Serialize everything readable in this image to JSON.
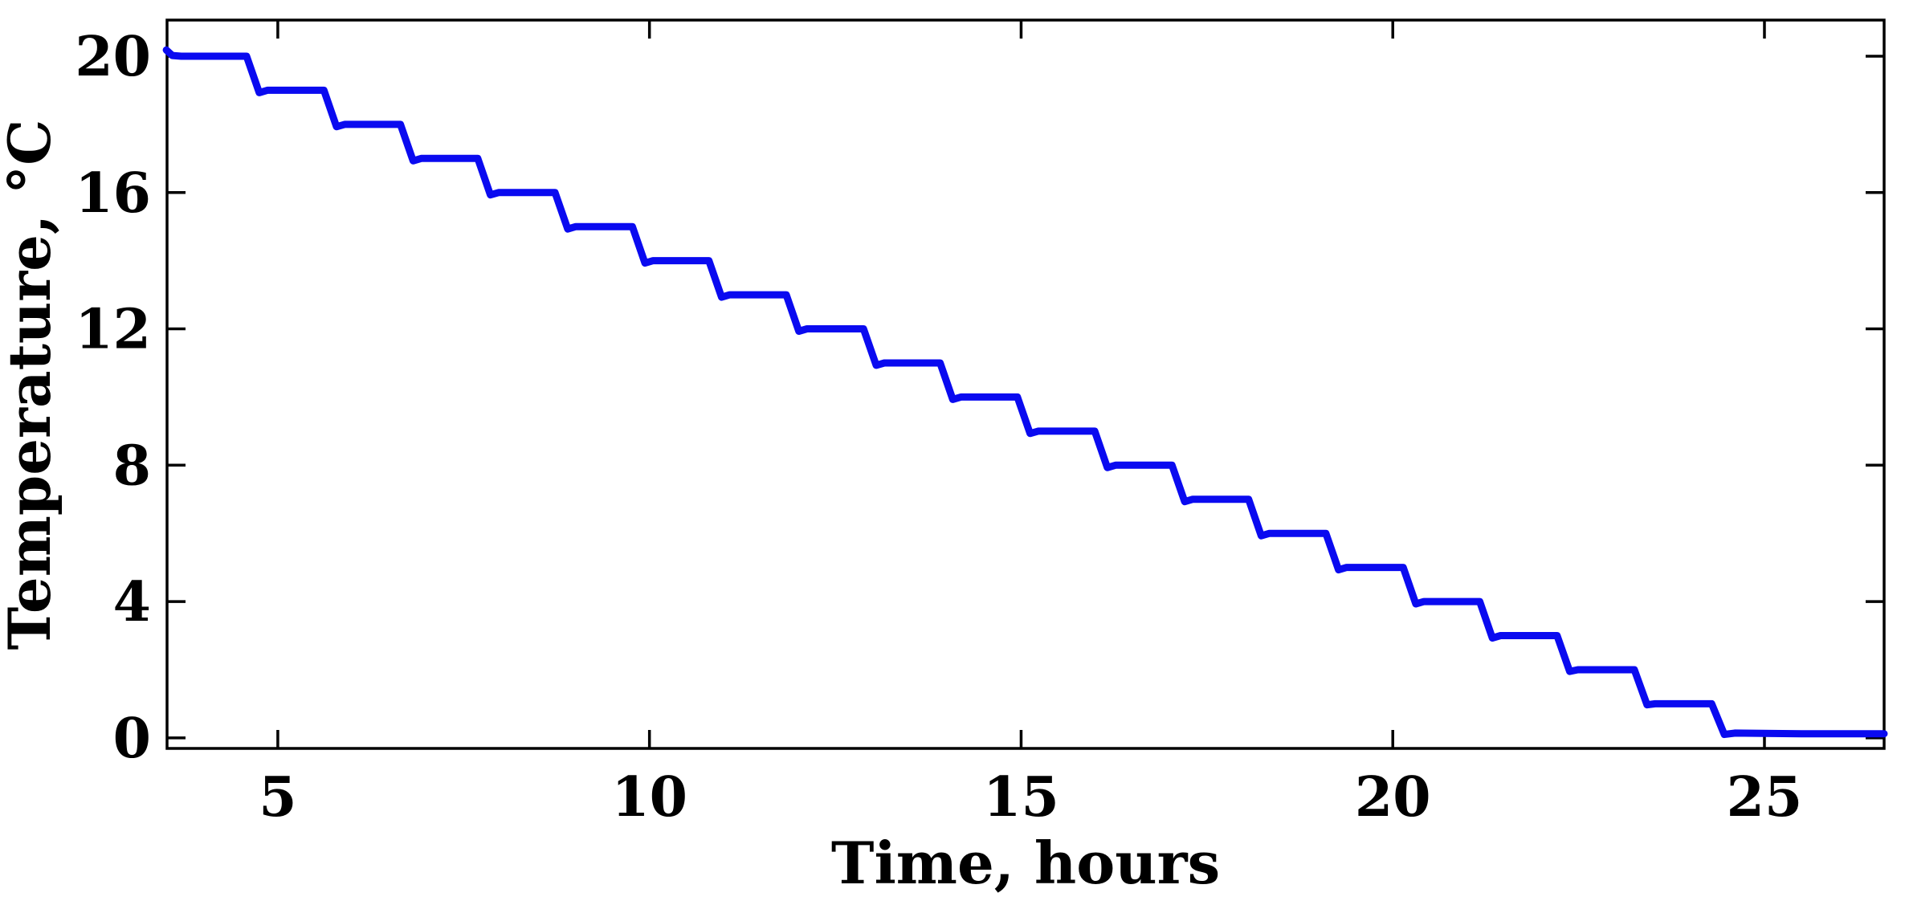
{
  "chart_data": {
    "type": "line",
    "title": "",
    "xlabel": "Time, hours",
    "ylabel": "Temperature, °C",
    "xlim": [
      3.51,
      26.61
    ],
    "ylim": [
      -0.31,
      21.06
    ],
    "xticks": [
      5,
      10,
      15,
      20,
      25
    ],
    "yticks": [
      0,
      4,
      8,
      12,
      16,
      20
    ],
    "grid": false,
    "legend": "none",
    "box": true,
    "tick_direction": "in",
    "line_color": "#0a0af0",
    "axis_color": "#000000",
    "description": "Stepwise cooling curve: temperature decreases from 20 C in 1-degree steps about every 1.04 hours, settling near 0.1 C after hour 24.5",
    "series": [
      {
        "name": "temperature",
        "points": [
          [
            3.5,
            20.18
          ],
          [
            3.58,
            20.02
          ],
          [
            3.7,
            20.0
          ],
          [
            4.58,
            20.0
          ],
          [
            4.75,
            18.93
          ],
          [
            4.86,
            19.0
          ],
          [
            5.62,
            19.0
          ],
          [
            5.79,
            17.93
          ],
          [
            5.9,
            18.0
          ],
          [
            6.65,
            18.0
          ],
          [
            6.82,
            16.93
          ],
          [
            6.93,
            17.0
          ],
          [
            7.69,
            17.0
          ],
          [
            7.86,
            15.93
          ],
          [
            7.97,
            16.0
          ],
          [
            8.73,
            16.0
          ],
          [
            8.9,
            14.93
          ],
          [
            9.01,
            15.0
          ],
          [
            9.77,
            15.0
          ],
          [
            9.94,
            13.93
          ],
          [
            10.05,
            14.0
          ],
          [
            10.8,
            14.0
          ],
          [
            10.97,
            12.93
          ],
          [
            11.08,
            13.0
          ],
          [
            11.84,
            13.0
          ],
          [
            12.01,
            11.93
          ],
          [
            12.12,
            12.0
          ],
          [
            12.88,
            12.0
          ],
          [
            13.05,
            10.93
          ],
          [
            13.16,
            11.0
          ],
          [
            13.91,
            11.0
          ],
          [
            14.08,
            9.93
          ],
          [
            14.19,
            10.0
          ],
          [
            14.95,
            10.0
          ],
          [
            15.12,
            8.93
          ],
          [
            15.23,
            9.0
          ],
          [
            15.99,
            9.0
          ],
          [
            16.16,
            7.93
          ],
          [
            16.27,
            8.0
          ],
          [
            17.03,
            8.0
          ],
          [
            17.2,
            6.93
          ],
          [
            17.31,
            7.0
          ],
          [
            18.06,
            7.0
          ],
          [
            18.23,
            5.93
          ],
          [
            18.34,
            6.0
          ],
          [
            19.1,
            6.0
          ],
          [
            19.27,
            4.93
          ],
          [
            19.38,
            5.0
          ],
          [
            20.14,
            5.0
          ],
          [
            20.31,
            3.93
          ],
          [
            20.42,
            4.0
          ],
          [
            21.17,
            4.0
          ],
          [
            21.34,
            2.93
          ],
          [
            21.45,
            3.0
          ],
          [
            22.21,
            3.0
          ],
          [
            22.38,
            1.95
          ],
          [
            22.49,
            2.0
          ],
          [
            23.25,
            2.0
          ],
          [
            23.42,
            0.97
          ],
          [
            23.53,
            1.0
          ],
          [
            24.29,
            1.0
          ],
          [
            24.46,
            0.1
          ],
          [
            24.6,
            0.14
          ],
          [
            25.5,
            0.12
          ],
          [
            26.61,
            0.12
          ]
        ]
      }
    ]
  }
}
